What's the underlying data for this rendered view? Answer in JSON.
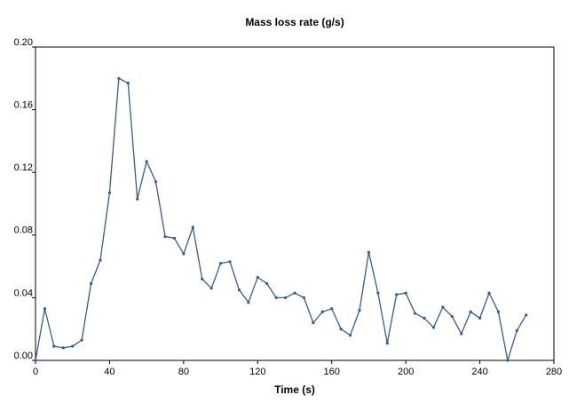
{
  "chart_data": {
    "type": "line",
    "title": "Mass loss rate (g/s)",
    "x_label": "Time (s)",
    "x": [
      0,
      5,
      10,
      15,
      20,
      25,
      30,
      35,
      40,
      45,
      50,
      55,
      60,
      65,
      70,
      75,
      80,
      85,
      90,
      95,
      100,
      105,
      110,
      115,
      120,
      125,
      130,
      135,
      140,
      145,
      150,
      155,
      160,
      165,
      170,
      175,
      180,
      185,
      190,
      195,
      200,
      205,
      210,
      215,
      220,
      225,
      230,
      235,
      240,
      245,
      250,
      255,
      260,
      265
    ],
    "series": [
      {
        "color": "#3a5a8a",
        "values": [
          0.0,
          0.033,
          0.009,
          0.008,
          0.009,
          0.013,
          0.049,
          0.064,
          0.107,
          0.18,
          0.177,
          0.103,
          0.127,
          0.114,
          0.079,
          0.078,
          0.068,
          0.085,
          0.052,
          0.046,
          0.062,
          0.063,
          0.045,
          0.037,
          0.053,
          0.049,
          0.04,
          0.04,
          0.043,
          0.04,
          0.024,
          0.031,
          0.033,
          0.02,
          0.016,
          0.032,
          0.069,
          0.043,
          0.011,
          0.042,
          0.043,
          0.03,
          0.027,
          0.021,
          0.034,
          0.028,
          0.017,
          0.031,
          0.027,
          0.043,
          0.031,
          0.0,
          0.019,
          0.029
        ]
      }
    ],
    "xlim": [
      0,
      280
    ],
    "xticks": [
      0,
      40,
      80,
      120,
      160,
      200,
      240,
      280
    ],
    "ylim": [
      0,
      0.2
    ],
    "yticks": [
      {
        "value": 0,
        "label": "0.00"
      },
      {
        "value": 0.04,
        "label": "0.04"
      },
      {
        "value": 0.08,
        "label": "0.08"
      },
      {
        "value": 0.12,
        "label": "0.12"
      },
      {
        "value": 0.16,
        "label": "0.16"
      },
      {
        "value": 0.2,
        "label": "0.20"
      }
    ]
  }
}
